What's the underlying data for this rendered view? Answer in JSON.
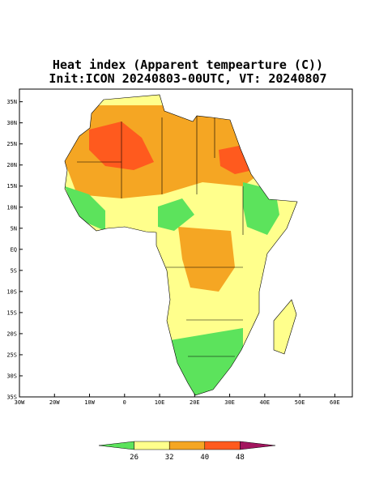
{
  "map": {
    "title": "Heat index (Apparent tempearture (C))",
    "subtitle": "Init:ICON 20240803-00UTC, VT: 20240807",
    "xlim": [
      -30,
      65
    ],
    "ylim": [
      -35,
      38
    ],
    "xticks": [
      {
        "value": -30,
        "label": "30W"
      },
      {
        "value": -20,
        "label": "20W"
      },
      {
        "value": -10,
        "label": "10W"
      },
      0,
      {
        "value": 10,
        "label": "10E"
      },
      {
        "value": 20,
        "label": "20E"
      },
      {
        "value": 30,
        "label": "30E"
      },
      {
        "value": 40,
        "label": "40E"
      },
      {
        "value": 50,
        "label": "50E"
      },
      {
        "value": 60,
        "label": "60E"
      }
    ],
    "yticks": [
      {
        "value": 35,
        "label": "35N"
      },
      {
        "value": 30,
        "label": "30N"
      },
      {
        "value": 25,
        "label": "25N"
      },
      {
        "value": 20,
        "label": "20N"
      },
      {
        "value": 15,
        "label": "15N"
      },
      {
        "value": 10,
        "label": "10N"
      },
      {
        "value": 5,
        "label": "5N"
      },
      {
        "value": 0,
        "label": "EQ"
      },
      {
        "value": -5,
        "label": "5S"
      },
      {
        "value": -10,
        "label": "10S"
      },
      {
        "value": -15,
        "label": "15S"
      },
      {
        "value": -20,
        "label": "20S"
      },
      {
        "value": -25,
        "label": "25S"
      },
      {
        "value": -30,
        "label": "30S"
      },
      {
        "value": -35,
        "label": "35S"
      }
    ],
    "colorbar": {
      "levels": [
        26,
        32,
        40,
        48
      ],
      "colors": [
        "#5ce35c",
        "#ffff8c",
        "#f5a623",
        "#ff5a1e",
        "#a3155f"
      ]
    }
  }
}
